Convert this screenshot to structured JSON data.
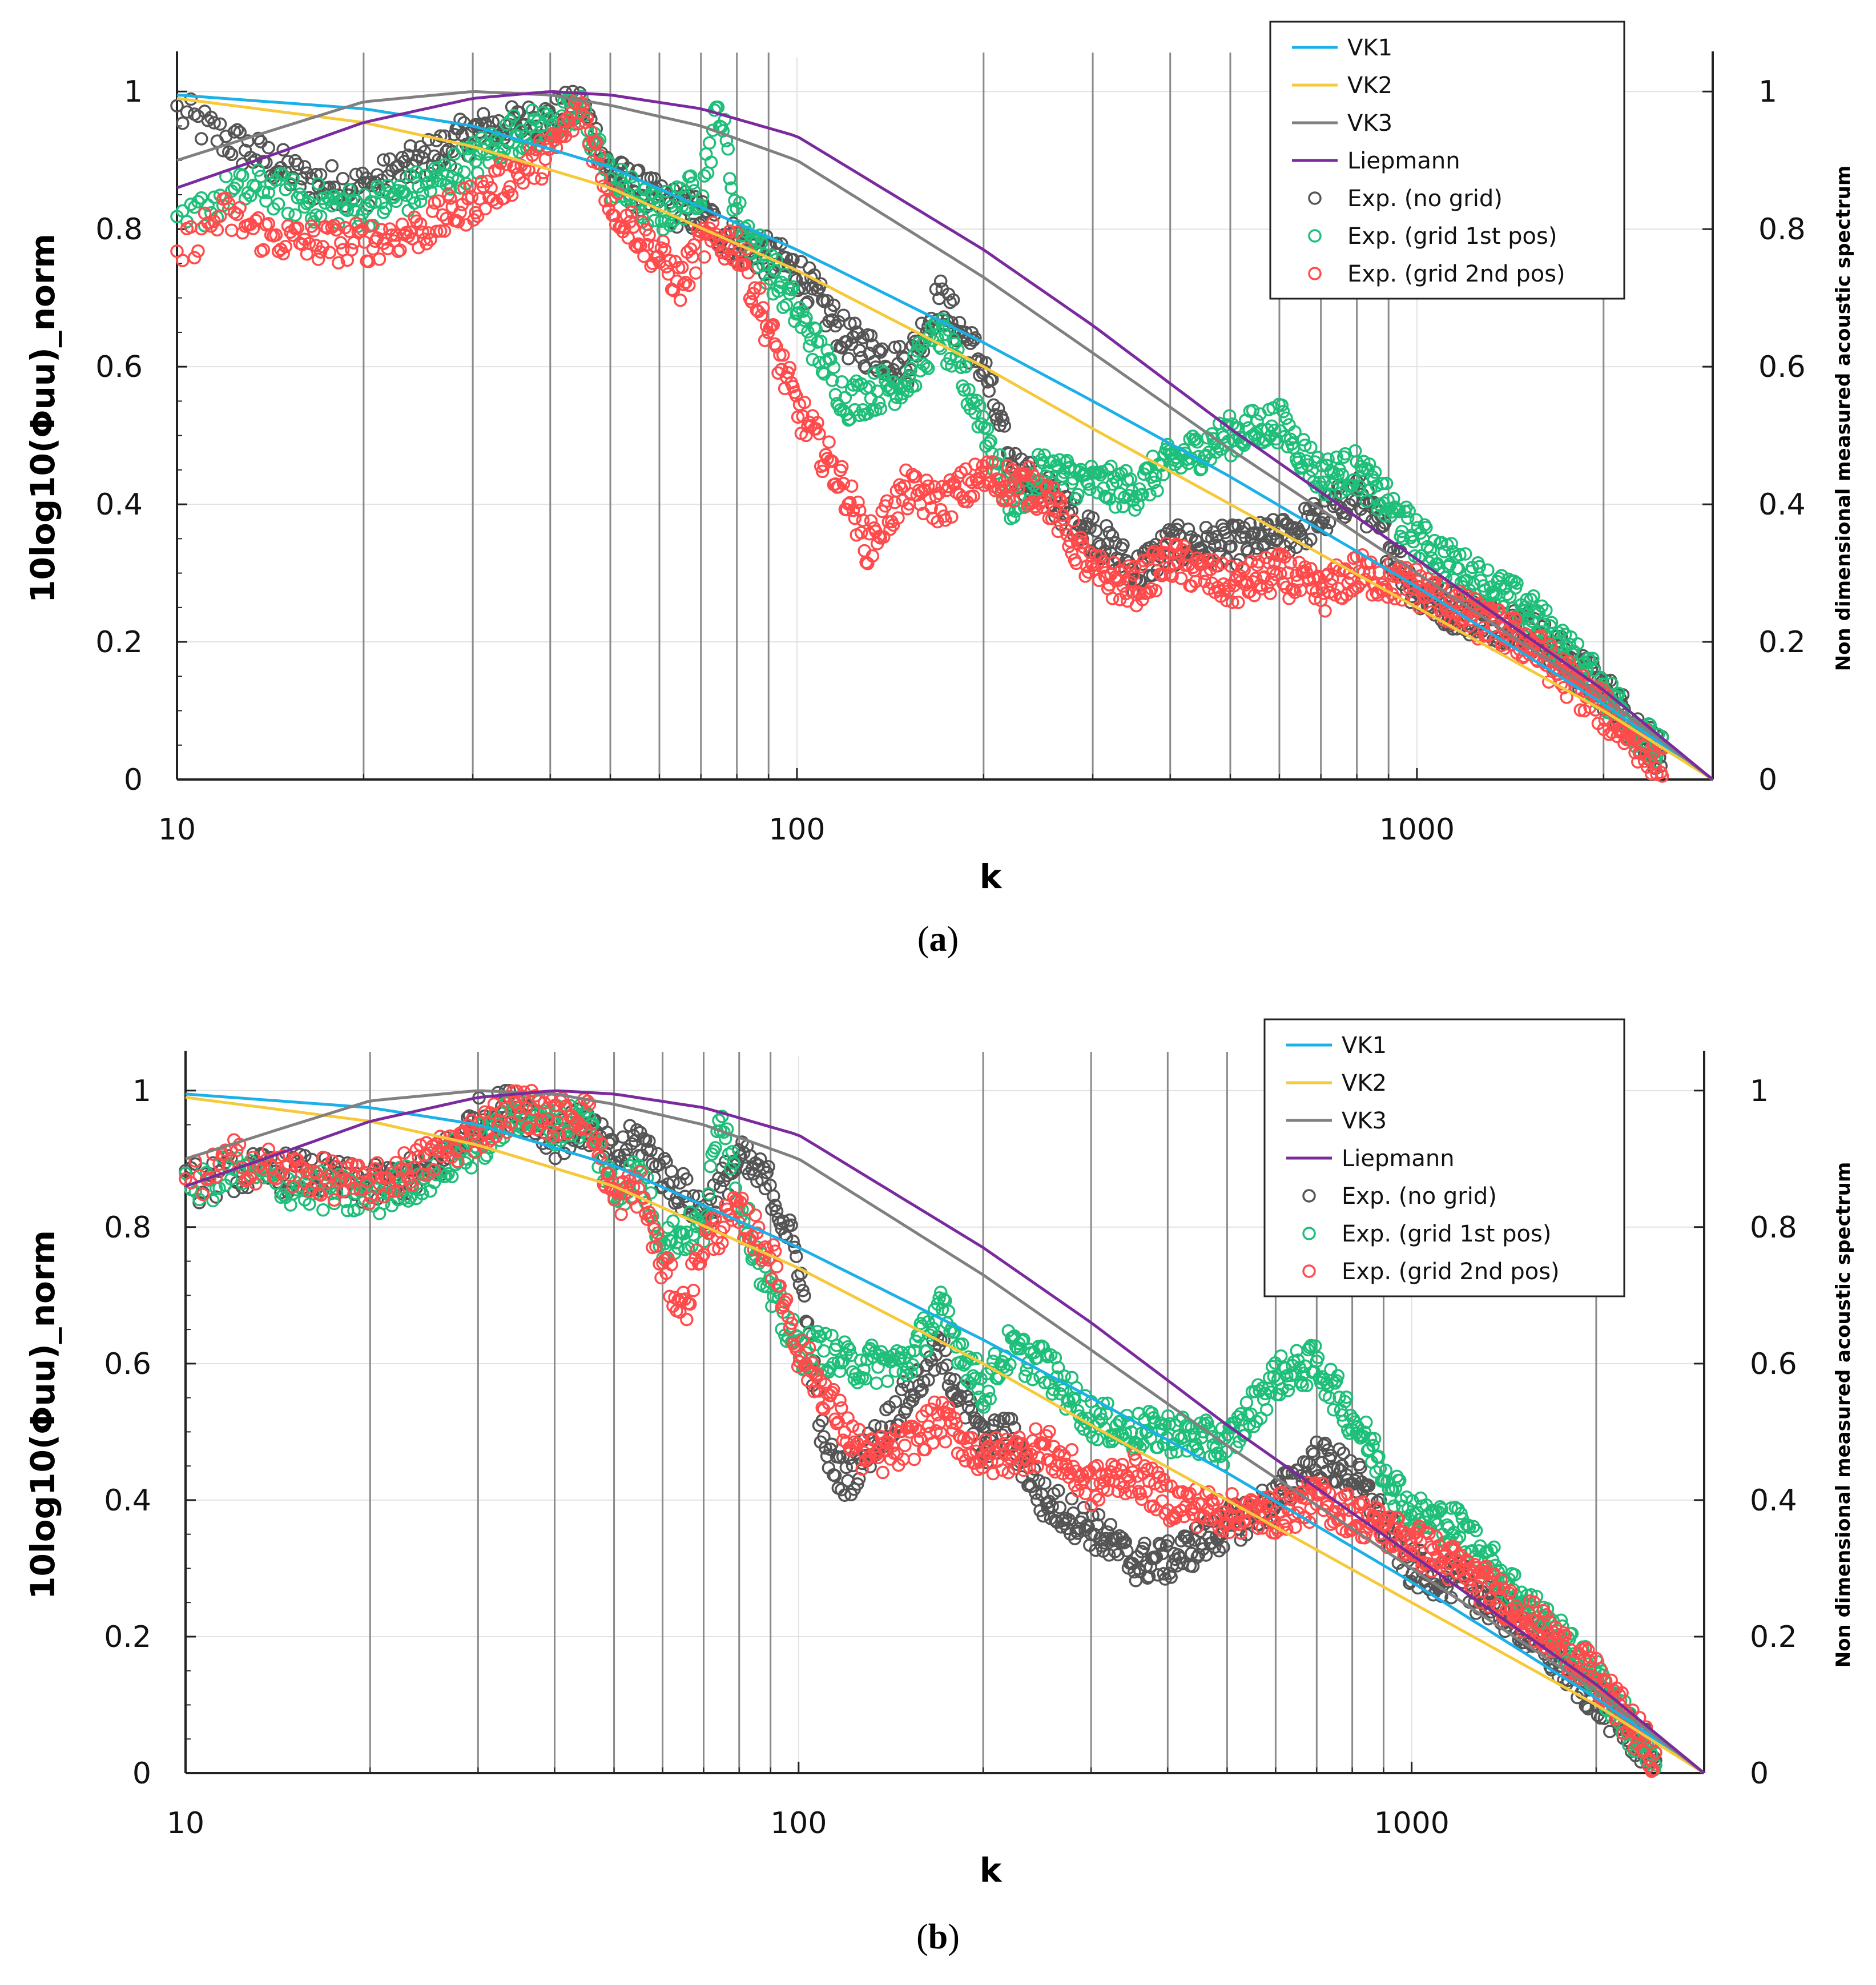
{
  "chart_data": [
    {
      "type": "scatter",
      "panel_label": "a",
      "xlabel": "k",
      "ylabel": "10log10(Φuu)_norm",
      "ylabel_right": "Non dimensional measured acoustic spectrum",
      "xscale": "log",
      "xlim": [
        10,
        3000
      ],
      "ylim": [
        0,
        1.05
      ],
      "x_ticks": [
        "10",
        "100",
        "1000"
      ],
      "y_ticks": [
        "0",
        "0.2",
        "0.4",
        "0.6",
        "0.8",
        "1"
      ],
      "vlines": [
        20,
        30,
        40,
        50,
        60,
        70,
        80,
        90,
        200,
        300,
        400,
        500,
        600,
        700,
        800,
        900,
        2000
      ],
      "legend_position": "top-right",
      "lines": [
        {
          "name": "VK1",
          "color": "#1bb0e8",
          "k": [
            10,
            20,
            30,
            50,
            100,
            200,
            300,
            500,
            1000,
            2000,
            3000
          ],
          "y": [
            0.995,
            0.975,
            0.95,
            0.89,
            0.77,
            0.635,
            0.55,
            0.44,
            0.28,
            0.11,
            0.0
          ]
        },
        {
          "name": "VK2",
          "color": "#f5c93a",
          "k": [
            10,
            20,
            30,
            50,
            100,
            200,
            300,
            500,
            1000,
            2000,
            3000
          ],
          "y": [
            0.99,
            0.955,
            0.92,
            0.86,
            0.74,
            0.6,
            0.51,
            0.4,
            0.25,
            0.1,
            0.0
          ]
        },
        {
          "name": "VK3",
          "color": "#808080",
          "k": [
            10,
            15,
            20,
            30,
            40,
            50,
            70,
            100,
            200,
            300,
            500,
            1000,
            2000,
            3000
          ],
          "y": [
            0.9,
            0.95,
            0.985,
            1.0,
            0.995,
            0.98,
            0.95,
            0.9,
            0.73,
            0.62,
            0.48,
            0.3,
            0.12,
            0.0
          ]
        },
        {
          "name": "Liepmann",
          "color": "#7b2a9e",
          "k": [
            10,
            15,
            20,
            30,
            40,
            50,
            70,
            100,
            200,
            300,
            500,
            1000,
            2000,
            3000
          ],
          "y": [
            0.86,
            0.915,
            0.955,
            0.99,
            1.0,
            0.995,
            0.975,
            0.935,
            0.77,
            0.66,
            0.51,
            0.32,
            0.13,
            0.0
          ]
        }
      ],
      "scatter": [
        {
          "name": "Exp. (no grid)",
          "color": "#555555",
          "k": [
            10,
            11,
            12,
            14,
            16,
            20,
            25,
            30,
            35,
            40,
            45,
            50,
            60,
            70,
            80,
            100,
            120,
            150,
            170,
            200,
            220,
            250,
            300,
            350,
            400,
            500,
            600,
            700,
            800,
            1000,
            1200,
            1500,
            2000,
            2500
          ],
          "y": [
            0.97,
            0.95,
            0.93,
            0.9,
            0.87,
            0.86,
            0.9,
            0.94,
            0.95,
            0.96,
            0.98,
            0.88,
            0.84,
            0.82,
            0.78,
            0.74,
            0.64,
            0.6,
            0.7,
            0.6,
            0.46,
            0.42,
            0.36,
            0.3,
            0.34,
            0.34,
            0.35,
            0.38,
            0.42,
            0.27,
            0.24,
            0.22,
            0.13,
            0.03
          ]
        },
        {
          "name": "Exp. (grid 1st pos)",
          "color": "#1fbf7a",
          "k": [
            10,
            11,
            12,
            14,
            16,
            20,
            25,
            30,
            35,
            40,
            45,
            50,
            60,
            70,
            75,
            80,
            100,
            120,
            150,
            170,
            200,
            220,
            250,
            300,
            350,
            400,
            500,
            600,
            700,
            800,
            1000,
            1200,
            1500,
            2000,
            2500
          ],
          "y": [
            0.79,
            0.83,
            0.85,
            0.86,
            0.84,
            0.83,
            0.86,
            0.9,
            0.94,
            0.95,
            0.97,
            0.87,
            0.82,
            0.86,
            0.98,
            0.82,
            0.68,
            0.55,
            0.58,
            0.65,
            0.52,
            0.4,
            0.45,
            0.43,
            0.42,
            0.46,
            0.5,
            0.52,
            0.44,
            0.45,
            0.35,
            0.3,
            0.25,
            0.13,
            0.03
          ]
        },
        {
          "name": "Exp. (grid 2nd pos)",
          "color": "#ff4b4b",
          "k": [
            10,
            11,
            12,
            14,
            16,
            20,
            25,
            30,
            35,
            40,
            45,
            50,
            60,
            65,
            70,
            80,
            100,
            120,
            130,
            150,
            170,
            200,
            250,
            300,
            350,
            400,
            500,
            600,
            700,
            800,
            1000,
            1200,
            1500,
            2000,
            2500
          ],
          "y": [
            0.76,
            0.8,
            0.82,
            0.79,
            0.78,
            0.78,
            0.8,
            0.84,
            0.88,
            0.91,
            0.98,
            0.84,
            0.76,
            0.72,
            0.78,
            0.78,
            0.54,
            0.42,
            0.34,
            0.42,
            0.4,
            0.44,
            0.42,
            0.3,
            0.28,
            0.32,
            0.28,
            0.3,
            0.27,
            0.3,
            0.28,
            0.24,
            0.2,
            0.1,
            0.02
          ]
        }
      ],
      "legend": [
        "VK1",
        "VK2",
        "VK3",
        "Liepmann",
        "Exp. (no grid)",
        "Exp. (grid 1st pos)",
        "Exp. (grid 2nd pos)"
      ]
    },
    {
      "type": "scatter",
      "panel_label": "b",
      "xlabel": "k",
      "ylabel": "10log10(Φuu)_norm",
      "ylabel_right": "Non dimensional measured acoustic spectrum",
      "xscale": "log",
      "xlim": [
        10,
        3000
      ],
      "ylim": [
        0,
        1.05
      ],
      "x_ticks": [
        "10",
        "100",
        "1000"
      ],
      "y_ticks": [
        "0",
        "0.2",
        "0.4",
        "0.6",
        "0.8",
        "1"
      ],
      "vlines": [
        20,
        30,
        40,
        50,
        60,
        70,
        80,
        90,
        200,
        300,
        400,
        500,
        600,
        700,
        800,
        900,
        2000
      ],
      "legend_position": "top-right",
      "lines": [
        {
          "name": "VK1",
          "color": "#1bb0e8",
          "k": [
            10,
            20,
            30,
            50,
            100,
            200,
            300,
            500,
            1000,
            2000,
            3000
          ],
          "y": [
            0.995,
            0.975,
            0.95,
            0.89,
            0.77,
            0.635,
            0.55,
            0.44,
            0.28,
            0.11,
            0.0
          ]
        },
        {
          "name": "VK2",
          "color": "#f5c93a",
          "k": [
            10,
            20,
            30,
            50,
            100,
            200,
            300,
            500,
            1000,
            2000,
            3000
          ],
          "y": [
            0.99,
            0.955,
            0.92,
            0.86,
            0.74,
            0.6,
            0.51,
            0.4,
            0.25,
            0.1,
            0.0
          ]
        },
        {
          "name": "VK3",
          "color": "#808080",
          "k": [
            10,
            15,
            20,
            30,
            40,
            50,
            70,
            100,
            200,
            300,
            500,
            1000,
            2000,
            3000
          ],
          "y": [
            0.9,
            0.95,
            0.985,
            1.0,
            0.995,
            0.98,
            0.95,
            0.9,
            0.73,
            0.62,
            0.48,
            0.3,
            0.12,
            0.0
          ]
        },
        {
          "name": "Liepmann",
          "color": "#7b2a9e",
          "k": [
            10,
            15,
            20,
            30,
            40,
            50,
            70,
            100,
            200,
            300,
            500,
            1000,
            2000,
            3000
          ],
          "y": [
            0.86,
            0.915,
            0.955,
            0.99,
            1.0,
            0.995,
            0.975,
            0.935,
            0.77,
            0.66,
            0.51,
            0.32,
            0.13,
            0.0
          ]
        }
      ],
      "scatter": [
        {
          "name": "Exp. (no grid)",
          "color": "#555555",
          "k": [
            10,
            12,
            15,
            20,
            25,
            30,
            35,
            40,
            45,
            50,
            55,
            60,
            70,
            80,
            90,
            100,
            110,
            120,
            150,
            170,
            200,
            220,
            250,
            300,
            350,
            400,
            500,
            600,
            700,
            800,
            1000,
            1200,
            1500,
            2000,
            2500
          ],
          "y": [
            0.86,
            0.88,
            0.88,
            0.86,
            0.88,
            0.96,
            0.98,
            0.93,
            0.95,
            0.9,
            0.93,
            0.88,
            0.82,
            0.9,
            0.86,
            0.75,
            0.47,
            0.43,
            0.55,
            0.62,
            0.48,
            0.5,
            0.4,
            0.36,
            0.31,
            0.31,
            0.36,
            0.4,
            0.46,
            0.44,
            0.3,
            0.28,
            0.22,
            0.11,
            0.02
          ]
        },
        {
          "name": "Exp. (grid 1st pos)",
          "color": "#1fbf7a",
          "k": [
            10,
            12,
            15,
            20,
            25,
            30,
            35,
            40,
            45,
            50,
            55,
            60,
            70,
            75,
            80,
            90,
            100,
            110,
            120,
            150,
            170,
            200,
            220,
            250,
            300,
            350,
            400,
            500,
            600,
            700,
            800,
            1000,
            1200,
            1500,
            2000,
            2500
          ],
          "y": [
            0.85,
            0.88,
            0.86,
            0.84,
            0.88,
            0.92,
            0.97,
            0.95,
            0.96,
            0.85,
            0.88,
            0.78,
            0.8,
            0.98,
            0.84,
            0.7,
            0.62,
            0.62,
            0.6,
            0.6,
            0.68,
            0.56,
            0.62,
            0.6,
            0.52,
            0.5,
            0.5,
            0.48,
            0.58,
            0.6,
            0.52,
            0.38,
            0.36,
            0.26,
            0.14,
            0.01
          ]
        },
        {
          "name": "Exp. (grid 2nd pos)",
          "color": "#ff4b4b",
          "k": [
            10,
            12,
            15,
            20,
            25,
            30,
            35,
            40,
            45,
            50,
            55,
            60,
            65,
            70,
            80,
            90,
            100,
            110,
            120,
            130,
            150,
            170,
            200,
            250,
            300,
            350,
            400,
            500,
            600,
            700,
            800,
            1000,
            1200,
            1500,
            2000,
            2500
          ],
          "y": [
            0.86,
            0.9,
            0.88,
            0.86,
            0.9,
            0.94,
            0.98,
            0.96,
            0.97,
            0.84,
            0.86,
            0.74,
            0.68,
            0.78,
            0.82,
            0.76,
            0.62,
            0.56,
            0.5,
            0.46,
            0.48,
            0.52,
            0.46,
            0.48,
            0.42,
            0.44,
            0.4,
            0.38,
            0.38,
            0.4,
            0.38,
            0.34,
            0.3,
            0.24,
            0.14,
            0.02
          ]
        }
      ],
      "legend": [
        "VK1",
        "VK2",
        "VK3",
        "Liepmann",
        "Exp. (no grid)",
        "Exp. (grid 1st pos)",
        "Exp. (grid 2nd pos)"
      ]
    }
  ]
}
